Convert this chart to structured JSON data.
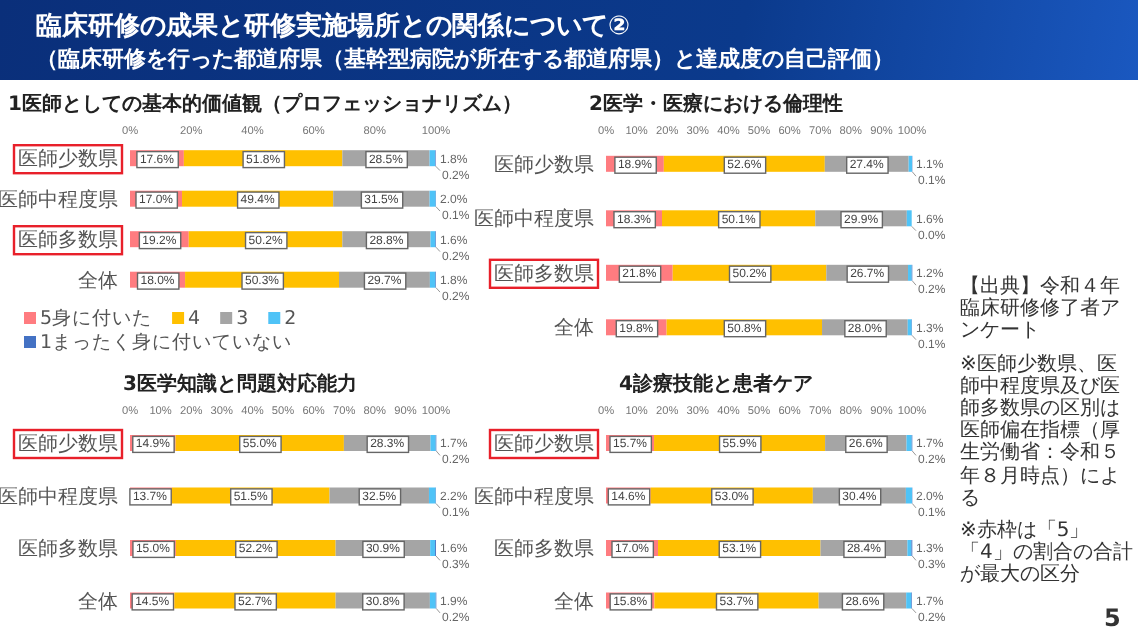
{
  "chart_data": [
    {
      "type": "bar",
      "orientation": "horizontal",
      "stacked": true,
      "title": "1医師としての基本的価値観（プロフェッショナリズム）",
      "categories": [
        "医師少数県",
        "医師中程度県",
        "医師多数県",
        "全体"
      ],
      "xlim": [
        0,
        100
      ],
      "xticks": [
        {
          "value": 0,
          "label": "0%"
        },
        {
          "value": 20,
          "label": "20%"
        },
        {
          "value": 40,
          "label": "40%"
        },
        {
          "value": 60,
          "label": "60%"
        },
        {
          "value": 80,
          "label": "80%"
        },
        {
          "value": 100,
          "label": "100%"
        }
      ],
      "legend": "bottom",
      "series": [
        {
          "name": "5身に付いた",
          "color": "#ff7c80",
          "values": [
            17.6,
            17.0,
            19.2,
            18.0
          ],
          "value_labels": [
            "17.6%",
            "17.0%",
            "19.2%",
            "18.0%"
          ]
        },
        {
          "name": "4",
          "color": "#ffc000",
          "values": [
            51.8,
            49.4,
            50.2,
            50.3
          ],
          "value_labels": [
            "51.8%",
            "49.4%",
            "50.2%",
            "50.3%"
          ]
        },
        {
          "name": "3",
          "color": "#a5a5a5",
          "values": [
            28.5,
            31.5,
            28.8,
            29.7
          ],
          "value_labels": [
            "28.5%",
            "31.5%",
            "28.8%",
            "29.7%"
          ]
        },
        {
          "name": "2",
          "color": "#4fc3f7",
          "values": [
            1.8,
            2.0,
            1.6,
            1.8
          ],
          "value_labels": [
            "1.8%",
            "2.0%",
            "1.6%",
            "1.8%"
          ]
        },
        {
          "name": "1まったく身に付いていない",
          "color": "#4472c4",
          "values": [
            0.2,
            0.1,
            0.2,
            0.2
          ],
          "value_labels": [
            "0.2%",
            "0.1%",
            "0.2%",
            "0.2%"
          ]
        }
      ]
    },
    {
      "type": "bar",
      "orientation": "horizontal",
      "stacked": true,
      "title": "2医学・医療における倫理性",
      "categories": [
        "医師少数県",
        "医師中程度県",
        "医師多数県",
        "全体"
      ],
      "xlim": [
        0,
        100
      ],
      "xticks": [
        {
          "value": 0,
          "label": "0%"
        },
        {
          "value": 10,
          "label": "10%"
        },
        {
          "value": 20,
          "label": "20%"
        },
        {
          "value": 30,
          "label": "30%"
        },
        {
          "value": 40,
          "label": "40%"
        },
        {
          "value": 50,
          "label": "50%"
        },
        {
          "value": 60,
          "label": "60%"
        },
        {
          "value": 70,
          "label": "70%"
        },
        {
          "value": 80,
          "label": "80%"
        },
        {
          "value": 90,
          "label": "90%"
        },
        {
          "value": 100,
          "label": "100%"
        }
      ],
      "series": [
        {
          "color": "#ff7c80",
          "values": [
            18.9,
            18.3,
            21.8,
            19.8
          ],
          "value_labels": [
            "18.9%",
            "18.3%",
            "21.8%",
            "19.8%"
          ]
        },
        {
          "color": "#ffc000",
          "values": [
            52.6,
            50.1,
            50.2,
            50.8
          ],
          "value_labels": [
            "52.6%",
            "50.1%",
            "50.2%",
            "50.8%"
          ]
        },
        {
          "color": "#a5a5a5",
          "values": [
            27.4,
            29.9,
            26.7,
            28.0
          ],
          "value_labels": [
            "27.4%",
            "29.9%",
            "26.7%",
            "28.0%"
          ]
        },
        {
          "color": "#4fc3f7",
          "values": [
            1.1,
            1.6,
            1.2,
            1.3
          ],
          "value_labels": [
            "1.1%",
            "1.6%",
            "1.2%",
            "1.3%"
          ]
        },
        {
          "color": "#4472c4",
          "values": [
            0.1,
            0.0,
            0.2,
            0.1
          ],
          "value_labels": [
            "0.1%",
            "0.0%",
            "0.2%",
            "0.1%"
          ]
        }
      ]
    },
    {
      "type": "bar",
      "orientation": "horizontal",
      "stacked": true,
      "title": "3医学知識と問題対応能力",
      "categories": [
        "医師少数県",
        "医師中程度県",
        "医師多数県",
        "全体"
      ],
      "xlim": [
        0,
        100
      ],
      "xticks": [
        {
          "value": 0,
          "label": "0%"
        },
        {
          "value": 10,
          "label": "10%"
        },
        {
          "value": 20,
          "label": "20%"
        },
        {
          "value": 30,
          "label": "30%"
        },
        {
          "value": 40,
          "label": "40%"
        },
        {
          "value": 50,
          "label": "50%"
        },
        {
          "value": 60,
          "label": "60%"
        },
        {
          "value": 70,
          "label": "70%"
        },
        {
          "value": 80,
          "label": "80%"
        },
        {
          "value": 90,
          "label": "90%"
        },
        {
          "value": 100,
          "label": "100%"
        }
      ],
      "series": [
        {
          "color": "#ff7c80",
          "values": [
            14.9,
            13.7,
            15.0,
            14.5
          ],
          "value_labels": [
            "14.9%",
            "13.7%",
            "15.0%",
            "14.5%"
          ]
        },
        {
          "color": "#ffc000",
          "values": [
            55.0,
            51.5,
            52.2,
            52.7
          ],
          "value_labels": [
            "55.0%",
            "51.5%",
            "52.2%",
            "52.7%"
          ]
        },
        {
          "color": "#a5a5a5",
          "values": [
            28.3,
            32.5,
            30.9,
            30.8
          ],
          "value_labels": [
            "28.3%",
            "32.5%",
            "30.9%",
            "30.8%"
          ]
        },
        {
          "color": "#4fc3f7",
          "values": [
            1.7,
            2.2,
            1.6,
            1.9
          ],
          "value_labels": [
            "1.7%",
            "2.2%",
            "1.6%",
            "1.9%"
          ]
        },
        {
          "color": "#4472c4",
          "values": [
            0.2,
            0.1,
            0.3,
            0.2
          ],
          "value_labels": [
            "0.2%",
            "0.1%",
            "0.3%",
            "0.2%"
          ]
        }
      ]
    },
    {
      "type": "bar",
      "orientation": "horizontal",
      "stacked": true,
      "title": "4診療技能と患者ケア",
      "categories": [
        "医師少数県",
        "医師中程度県",
        "医師多数県",
        "全体"
      ],
      "xlim": [
        0,
        100
      ],
      "xticks": [
        {
          "value": 0,
          "label": "0%"
        },
        {
          "value": 10,
          "label": "10%"
        },
        {
          "value": 20,
          "label": "20%"
        },
        {
          "value": 30,
          "label": "30%"
        },
        {
          "value": 40,
          "label": "40%"
        },
        {
          "value": 50,
          "label": "50%"
        },
        {
          "value": 60,
          "label": "60%"
        },
        {
          "value": 70,
          "label": "70%"
        },
        {
          "value": 80,
          "label": "80%"
        },
        {
          "value": 90,
          "label": "90%"
        },
        {
          "value": 100,
          "label": "100%"
        }
      ],
      "series": [
        {
          "color": "#ff7c80",
          "values": [
            15.7,
            14.6,
            17.0,
            15.8
          ],
          "value_labels": [
            "15.7%",
            "14.6%",
            "17.0%",
            "15.8%"
          ]
        },
        {
          "color": "#ffc000",
          "values": [
            55.9,
            53.0,
            53.1,
            53.7
          ],
          "value_labels": [
            "55.9%",
            "53.0%",
            "53.1%",
            "53.7%"
          ]
        },
        {
          "color": "#a5a5a5",
          "values": [
            26.6,
            30.4,
            28.4,
            28.6
          ],
          "value_labels": [
            "26.6%",
            "30.4%",
            "28.4%",
            "28.6%"
          ]
        },
        {
          "color": "#4fc3f7",
          "values": [
            1.7,
            2.0,
            1.3,
            1.7
          ],
          "value_labels": [
            "1.7%",
            "2.0%",
            "1.3%",
            "1.7%"
          ]
        },
        {
          "color": "#4472c4",
          "values": [
            0.2,
            0.1,
            0.3,
            0.2
          ],
          "value_labels": [
            "0.2%",
            "0.1%",
            "0.3%",
            "0.2%"
          ]
        }
      ]
    },
    {
      "type": "other",
      "title": "臨床研修の成果と研修実施場所との関係について②",
      "subtitle": "（臨床研修を行った都道府県（基幹型病院が所在する都道府県）と達成度の自己評価）",
      "annotations": [
        "【出典】令和４年臨床研修修了者アンケート",
        "※医師少数県、医師中程度県及び医師多数県の区別は医師偏在指標（厚生労働省：令和５年８月時点）による",
        "※赤枠は「5」「4」の割合の合計が最大の区分",
        "5"
      ]
    }
  ]
}
